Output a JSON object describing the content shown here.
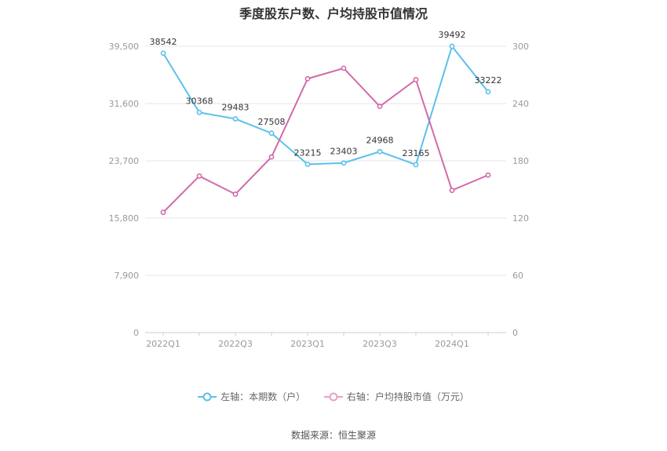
{
  "chart_data": {
    "type": "line",
    "title": "季度股东户数、户均持股市值情况",
    "x": [
      "2022Q1",
      "2022Q2",
      "2022Q3",
      "2022Q4",
      "2023Q1",
      "2023Q2",
      "2023Q3",
      "2023Q4",
      "2024Q1",
      "2024Q2"
    ],
    "x_tick_labels": [
      "2022Q1",
      "2022Q3",
      "2023Q1",
      "2023Q3",
      "2024Q1"
    ],
    "left_axis": {
      "range": [
        0,
        39500
      ],
      "ticks": [
        "0",
        "7,900",
        "15,800",
        "23,700",
        "31,600",
        "39,500"
      ]
    },
    "right_axis": {
      "range": [
        0,
        300
      ],
      "ticks": [
        "0",
        "60",
        "120",
        "180",
        "240",
        "300"
      ]
    },
    "series": [
      {
        "name": "左轴：本期数（户）",
        "axis": "left",
        "color": "#5bc0eb",
        "values": [
          38542,
          30368,
          29483,
          27508,
          23215,
          23403,
          24968,
          23165,
          39492,
          33222
        ],
        "labels": [
          "38542",
          "30368",
          "29483",
          "27508",
          "23215",
          "23403",
          "24968",
          "23165",
          "39492",
          "33222"
        ]
      },
      {
        "name": "右轴：户均持股市值（万元）",
        "axis": "right",
        "color": "#d16aa9",
        "values": [
          126,
          164,
          145,
          184,
          266,
          277,
          237,
          265,
          149,
          165
        ]
      }
    ],
    "grid": true,
    "legend": "bottom-center"
  },
  "source": "数据来源：恒生聚源"
}
